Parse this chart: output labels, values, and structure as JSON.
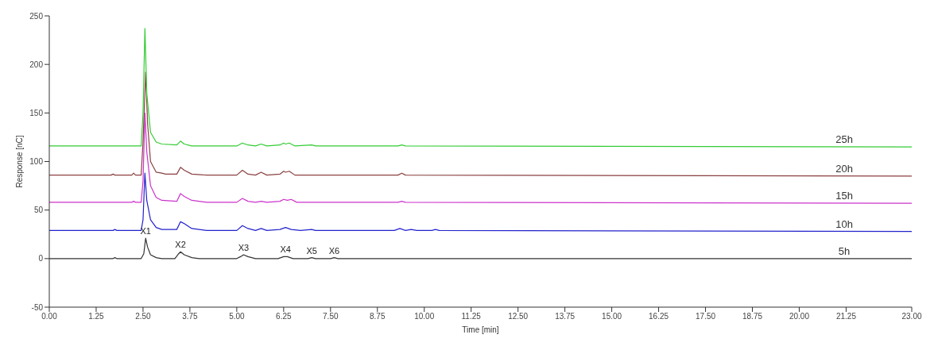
{
  "chart_data": {
    "type": "line",
    "xlabel": "Time [min]",
    "ylabel": "Response [nC]",
    "xlim": [
      0,
      23
    ],
    "xticks": [
      {
        "value": 0,
        "label": "0.00"
      },
      {
        "value": 1.25,
        "label": "1.25"
      },
      {
        "value": 2.5,
        "label": "2.50"
      },
      {
        "value": 3.75,
        "label": "3.75"
      },
      {
        "value": 5,
        "label": "5.00"
      },
      {
        "value": 6.25,
        "label": "6.25"
      },
      {
        "value": 7.5,
        "label": "7.50"
      },
      {
        "value": 8.75,
        "label": "8.75"
      },
      {
        "value": 10,
        "label": "10.00"
      },
      {
        "value": 11.25,
        "label": "11.25"
      },
      {
        "value": 12.5,
        "label": "12.50"
      },
      {
        "value": 13.75,
        "label": "13.75"
      },
      {
        "value": 15,
        "label": "15.00"
      },
      {
        "value": 16.25,
        "label": "16.25"
      },
      {
        "value": 17.5,
        "label": "17.50"
      },
      {
        "value": 18.75,
        "label": "18.75"
      },
      {
        "value": 20,
        "label": "20.00"
      },
      {
        "value": 21.25,
        "label": "21.25"
      },
      {
        "value": 23,
        "label": "23.00"
      }
    ],
    "ylim": [
      -50,
      250
    ],
    "yticks": [
      -50,
      0,
      50,
      100,
      150,
      200,
      250
    ],
    "marker": "none",
    "line_style": "solid",
    "series": [
      {
        "name": "25h",
        "color": "#33cc33",
        "x": [
          0,
          2.45,
          2.5,
          2.55,
          2.6,
          2.7,
          2.85,
          3.0,
          3.4,
          3.5,
          3.6,
          3.8,
          5.0,
          5.15,
          5.3,
          5.5,
          5.65,
          5.8,
          6.15,
          6.25,
          6.3,
          6.4,
          6.55,
          7.0,
          7.1,
          9.3,
          9.4,
          9.5,
          23
        ],
        "values": [
          116,
          116,
          150,
          237,
          170,
          130,
          120,
          118,
          117,
          121,
          118,
          116,
          116,
          119,
          117,
          116,
          118,
          116,
          117,
          119,
          118,
          119,
          116,
          117,
          116,
          116,
          117,
          116,
          115
        ]
      },
      {
        "name": "20h",
        "color": "#8b4040",
        "x": [
          0,
          1.65,
          1.7,
          1.75,
          2.2,
          2.25,
          2.3,
          2.45,
          2.5,
          2.57,
          2.62,
          2.7,
          2.85,
          3.0,
          3.1,
          3.4,
          3.5,
          3.6,
          3.8,
          4.2,
          5.0,
          5.15,
          5.3,
          5.5,
          5.65,
          5.8,
          6.15,
          6.25,
          6.3,
          6.4,
          6.55,
          9.3,
          9.4,
          9.5,
          23
        ],
        "values": [
          86,
          86,
          87,
          86,
          86,
          88,
          86,
          86,
          120,
          192,
          140,
          100,
          89,
          88,
          87,
          87,
          94,
          91,
          87,
          86,
          86,
          91,
          87,
          86,
          89,
          86,
          87,
          90,
          89,
          90,
          86,
          86,
          88,
          86,
          85
        ]
      },
      {
        "name": "15h",
        "color": "#cc33cc",
        "x": [
          0,
          2.2,
          2.25,
          2.3,
          2.45,
          2.5,
          2.55,
          2.6,
          2.7,
          2.85,
          3.0,
          3.4,
          3.5,
          3.6,
          3.8,
          4.2,
          5.0,
          5.15,
          5.3,
          5.5,
          5.65,
          5.8,
          6.15,
          6.25,
          6.35,
          6.45,
          6.6,
          9.3,
          9.4,
          9.5,
          23
        ],
        "values": [
          58,
          58,
          59,
          58,
          58,
          80,
          150,
          110,
          75,
          63,
          60,
          59,
          67,
          64,
          60,
          58,
          58,
          62,
          59,
          58,
          59,
          58,
          59,
          61,
          60,
          61,
          58,
          58,
          59,
          58,
          57
        ]
      },
      {
        "name": "10h",
        "color": "#2222cc",
        "x": [
          0,
          1.7,
          1.75,
          1.8,
          2.45,
          2.5,
          2.55,
          2.6,
          2.7,
          2.85,
          3.0,
          3.4,
          3.5,
          3.6,
          3.8,
          4.2,
          5.0,
          5.15,
          5.3,
          5.5,
          5.65,
          5.8,
          6.15,
          6.3,
          6.45,
          6.7,
          7.0,
          7.1,
          9.2,
          9.35,
          9.5,
          9.65,
          9.8,
          10.2,
          10.3,
          10.4,
          23
        ],
        "values": [
          29,
          29,
          30,
          29,
          29,
          40,
          88,
          60,
          40,
          32,
          30,
          30,
          38,
          36,
          31,
          29,
          29,
          34,
          31,
          29,
          31,
          29,
          30,
          32,
          30,
          29,
          30,
          29,
          29,
          31,
          29,
          30,
          29,
          29,
          30,
          29,
          28
        ]
      },
      {
        "name": "5h",
        "color": "#333333",
        "x": [
          0,
          1.7,
          1.75,
          1.8,
          2.45,
          2.52,
          2.57,
          2.62,
          2.7,
          2.85,
          3.0,
          3.35,
          3.45,
          3.5,
          3.6,
          3.8,
          4.0,
          5.0,
          5.1,
          5.18,
          5.3,
          5.5,
          6.1,
          6.25,
          6.35,
          6.5,
          6.9,
          7.0,
          7.1,
          7.5,
          7.6,
          7.7,
          8,
          23
        ],
        "values": [
          0,
          0,
          1,
          0,
          0,
          5,
          21,
          12,
          4,
          1,
          0,
          0,
          5,
          7,
          4,
          1,
          0,
          0,
          2,
          4,
          2,
          0,
          0,
          2,
          2,
          0,
          0,
          1,
          0,
          0,
          1,
          0,
          0,
          0
        ]
      }
    ],
    "annotations": [
      {
        "text": "X1",
        "x": 2.57,
        "y": 21
      },
      {
        "text": "X2",
        "x": 3.5,
        "y": 7
      },
      {
        "text": "X3",
        "x": 5.18,
        "y": 4
      },
      {
        "text": "X4",
        "x": 6.3,
        "y": 2
      },
      {
        "text": "X5",
        "x": 7.0,
        "y": 1
      },
      {
        "text": "X6",
        "x": 7.6,
        "y": 1
      }
    ]
  }
}
